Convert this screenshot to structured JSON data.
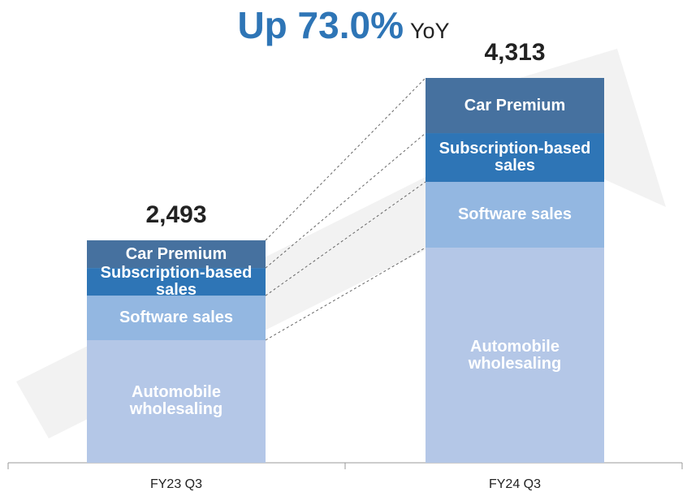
{
  "chart_data": {
    "type": "stacked_bar",
    "title": "Up 73.0%",
    "title_suffix": "YoY",
    "categories": [
      "FY23 Q3",
      "FY24 Q3"
    ],
    "series": [
      {
        "name": "Automobile wholesaling",
        "color": "#b4c7e7",
        "values": [
          1374,
          2411
        ]
      },
      {
        "name": "Software sales",
        "color": "#93b7e1",
        "values": [
          499,
          737
        ]
      },
      {
        "name": "Subscription-based sales",
        "color": "#2e75b6",
        "values": [
          310,
          546
        ]
      },
      {
        "name": "Car Premium",
        "color": "#46719f",
        "values": [
          310,
          619
        ]
      }
    ],
    "totals": [
      2493,
      4313
    ],
    "total_labels": [
      "2,493",
      "4,313"
    ]
  }
}
